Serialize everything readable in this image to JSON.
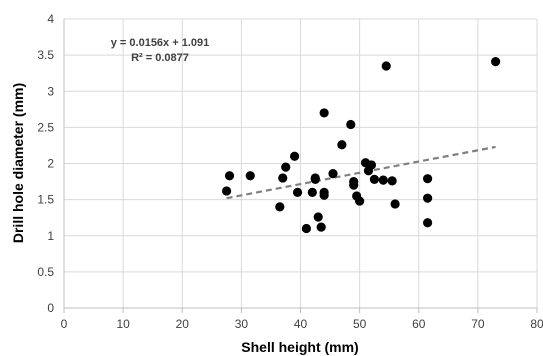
{
  "chart_data": {
    "type": "scatter",
    "xlabel": "Shell height (mm)",
    "ylabel": "Drill hole diameter (mm)",
    "xlim": [
      0,
      80
    ],
    "ylim": [
      0,
      4
    ],
    "x_ticks": [
      0,
      10,
      20,
      30,
      40,
      50,
      60,
      70,
      80
    ],
    "y_ticks": [
      0,
      0.5,
      1,
      1.5,
      2,
      2.5,
      3,
      3.5,
      4
    ],
    "x_tick_labels": [
      "0",
      "10",
      "20",
      "30",
      "40",
      "50",
      "60",
      "70",
      "80"
    ],
    "y_tick_labels": [
      "0",
      "0.5",
      "1",
      "1.5",
      "2",
      "2.5",
      "3",
      "3.5",
      "4"
    ],
    "grid": true,
    "legend": "none",
    "points": [
      {
        "x": 27.5,
        "y": 1.62
      },
      {
        "x": 28,
        "y": 1.83
      },
      {
        "x": 31.5,
        "y": 1.83
      },
      {
        "x": 36.5,
        "y": 1.4
      },
      {
        "x": 37,
        "y": 1.8
      },
      {
        "x": 37.5,
        "y": 1.95
      },
      {
        "x": 39,
        "y": 2.1
      },
      {
        "x": 39.5,
        "y": 1.6
      },
      {
        "x": 41,
        "y": 1.1
      },
      {
        "x": 42,
        "y": 1.6
      },
      {
        "x": 42.5,
        "y": 1.8
      },
      {
        "x": 42.5,
        "y": 1.78
      },
      {
        "x": 43,
        "y": 1.26
      },
      {
        "x": 43.5,
        "y": 1.12
      },
      {
        "x": 44,
        "y": 2.7
      },
      {
        "x": 44,
        "y": 1.6
      },
      {
        "x": 44,
        "y": 1.56
      },
      {
        "x": 45.5,
        "y": 1.86
      },
      {
        "x": 47,
        "y": 2.26
      },
      {
        "x": 48.5,
        "y": 2.54
      },
      {
        "x": 49,
        "y": 1.7
      },
      {
        "x": 49,
        "y": 1.75
      },
      {
        "x": 49.5,
        "y": 1.55
      },
      {
        "x": 50,
        "y": 1.48
      },
      {
        "x": 51,
        "y": 2.01
      },
      {
        "x": 51.5,
        "y": 1.9
      },
      {
        "x": 52,
        "y": 1.98
      },
      {
        "x": 52.5,
        "y": 1.78
      },
      {
        "x": 54,
        "y": 1.77
      },
      {
        "x": 54.5,
        "y": 3.35
      },
      {
        "x": 55.5,
        "y": 1.76
      },
      {
        "x": 56,
        "y": 1.44
      },
      {
        "x": 61.5,
        "y": 1.79
      },
      {
        "x": 61.5,
        "y": 1.52
      },
      {
        "x": 61.5,
        "y": 1.18
      },
      {
        "x": 73,
        "y": 3.41
      }
    ],
    "trendline": {
      "type": "linear",
      "slope": 0.0156,
      "intercept": 1.091,
      "x_range": [
        27.5,
        73
      ],
      "style": "dashed",
      "color": "#808080"
    },
    "annotations": {
      "equation": "y = 0.0156x + 1.091",
      "r_squared": "R² = 0.0877"
    },
    "colors": {
      "points": "#000000",
      "grid": "#d9d9d9",
      "axis": "#bfbfbf"
    }
  }
}
